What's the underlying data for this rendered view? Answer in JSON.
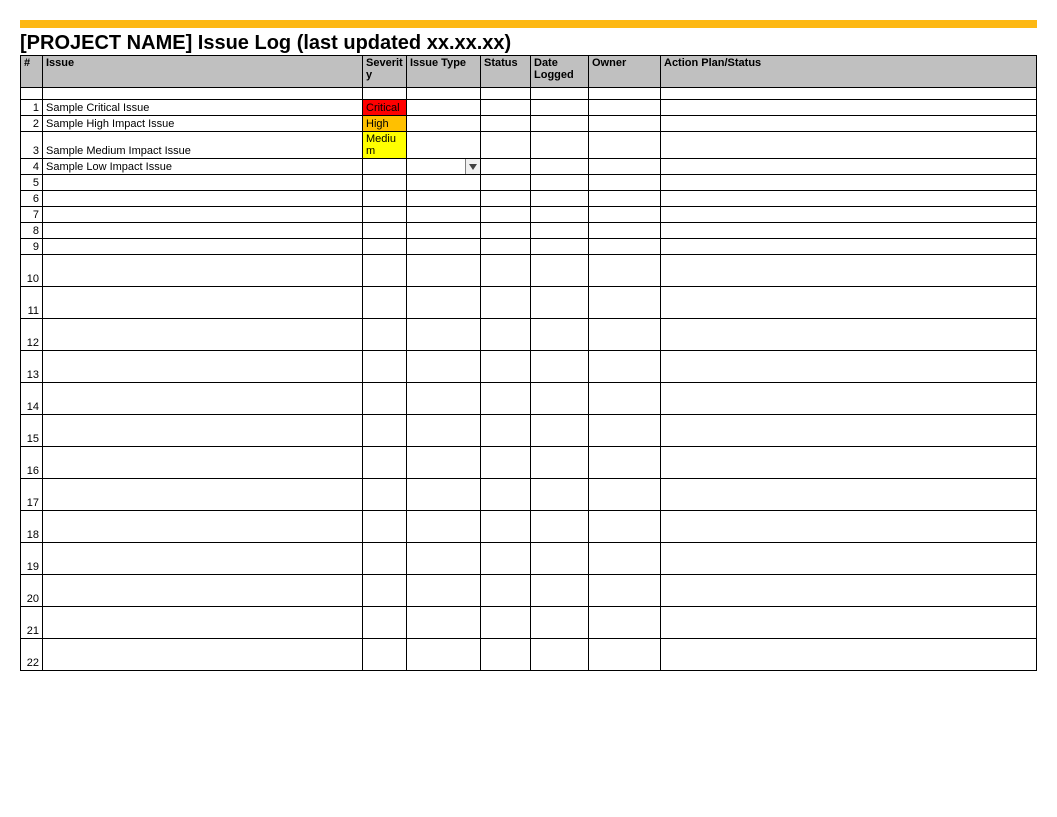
{
  "colors": {
    "accent_bar": "#fdb813",
    "header_bg": "#c0c0c0",
    "border": "#000000",
    "sev_critical": "#ff0000",
    "sev_high": "#ffc000",
    "sev_medium": "#ffff00"
  },
  "title": "[PROJECT NAME] Issue Log (last updated xx.xx.xx)",
  "columns": {
    "num": "#",
    "issue": "Issue",
    "severity": "Severity",
    "type": "Issue Type",
    "status": "Status",
    "date": "Date Logged",
    "owner": "Owner",
    "action": "Action Plan/Status"
  },
  "rows": [
    {
      "num": "1",
      "issue": "Sample Critical Issue",
      "severity": "Critical",
      "sev_class": "sev-critical",
      "height": "short"
    },
    {
      "num": "2",
      "issue": "Sample High Impact Issue",
      "severity": "High",
      "sev_class": "sev-high",
      "height": "short"
    },
    {
      "num": "3",
      "issue": "Sample Medium Impact Issue",
      "severity": "Medium",
      "sev_class": "sev-medium",
      "height": "med"
    },
    {
      "num": "4",
      "issue": "Sample Low Impact Issue",
      "dropdown": true,
      "height": "short"
    },
    {
      "num": "5",
      "height": "short"
    },
    {
      "num": "6",
      "height": "short"
    },
    {
      "num": "7",
      "height": "short"
    },
    {
      "num": "8",
      "height": "short"
    },
    {
      "num": "9",
      "height": "short"
    },
    {
      "num": "10",
      "height": "tall"
    },
    {
      "num": "11",
      "height": "tall"
    },
    {
      "num": "12",
      "height": "tall"
    },
    {
      "num": "13",
      "height": "tall"
    },
    {
      "num": "14",
      "height": "tall"
    },
    {
      "num": "15",
      "height": "tall"
    },
    {
      "num": "16",
      "height": "tall"
    },
    {
      "num": "17",
      "height": "tall"
    },
    {
      "num": "18",
      "height": "tall"
    },
    {
      "num": "19",
      "height": "tall"
    },
    {
      "num": "20",
      "height": "tall"
    },
    {
      "num": "21",
      "height": "tall"
    },
    {
      "num": "22",
      "height": "tall"
    }
  ]
}
